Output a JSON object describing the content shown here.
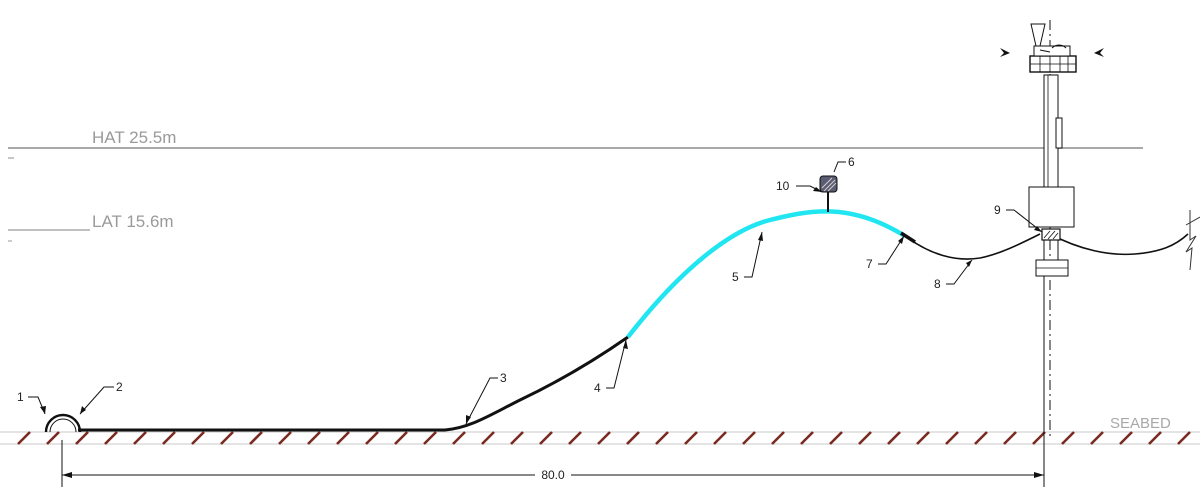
{
  "levels": {
    "hat_label": "HAT 25.5m",
    "lat_label": "LAT 15.6m",
    "seabed_label": "SEABED"
  },
  "dimension": {
    "value": "80.0"
  },
  "callouts": [
    "1",
    "2",
    "3",
    "4",
    "5",
    "6",
    "7",
    "8",
    "9",
    "10"
  ],
  "colors": {
    "flowline": "#111111",
    "buoyancy_section": "#21e6f2",
    "seabed_hatch": "#7a2a20",
    "water_level_line": "#8c8c8c"
  }
}
